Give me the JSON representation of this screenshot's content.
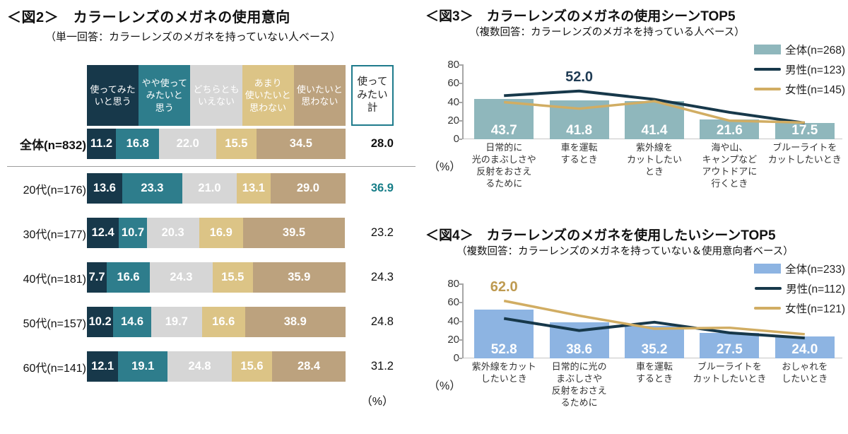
{
  "fig2": {
    "title": "＜図2＞　カラーレンズのメガネの使用意向",
    "subtitle": "（単一回答：カラーレンズのメガネを持っていない人ベース）",
    "unit_label": "（%）",
    "chart_data": {
      "type": "bar",
      "variant": "horizontal-stacked-100pct",
      "segments": [
        {
          "label": "使ってみた\nいと思う",
          "color": "#17384A",
          "text_color": "#ffffff"
        },
        {
          "label": "やや使って\nみたいと\n思う",
          "color": "#2E7D8C",
          "text_color": "#ffffff"
        },
        {
          "label": "どちらとも\nいえない",
          "color": "#D6D6D6",
          "text_color": "#ffffff"
        },
        {
          "label": "あまり\n使いたいと\n思わない",
          "color": "#DCC486",
          "text_color": "#ffffff"
        },
        {
          "label": "使いたいと\n思わない",
          "color": "#BCA27E",
          "text_color": "#ffffff"
        }
      ],
      "total_header": {
        "label": "使って\nみたい\n計",
        "border_color": "#1E7B8C"
      },
      "rows": [
        {
          "label": "全体(n=832)",
          "bold": true,
          "values": [
            11.2,
            16.8,
            22.0,
            15.5,
            34.5
          ],
          "total": "28.0",
          "total_bold": true,
          "total_color": "#111111",
          "separator_after": true
        },
        {
          "label": "20代(n=176)",
          "bold": false,
          "values": [
            13.6,
            23.3,
            21.0,
            13.1,
            29.0
          ],
          "total": "36.9",
          "total_bold": true,
          "total_color": "#177E88",
          "separator_after": false
        },
        {
          "label": "30代(n=177)",
          "bold": false,
          "values": [
            12.4,
            10.7,
            20.3,
            16.9,
            39.5
          ],
          "total": "23.2",
          "total_bold": false,
          "total_color": "#111111",
          "separator_after": false
        },
        {
          "label": "40代(n=181)",
          "bold": false,
          "values": [
            7.7,
            16.6,
            24.3,
            15.5,
            35.9
          ],
          "total": "24.3",
          "total_bold": false,
          "total_color": "#111111",
          "separator_after": false
        },
        {
          "label": "50代(n=157)",
          "bold": false,
          "values": [
            10.2,
            14.6,
            19.7,
            16.6,
            38.9
          ],
          "total": "24.8",
          "total_bold": false,
          "total_color": "#111111",
          "separator_after": false
        },
        {
          "label": "60代(n=141)",
          "bold": false,
          "values": [
            12.1,
            19.1,
            24.8,
            15.6,
            28.4
          ],
          "total": "31.2",
          "total_bold": false,
          "total_color": "#111111",
          "separator_after": false
        }
      ]
    }
  },
  "fig3": {
    "title": "＜図3＞　カラーレンズのメガネの使用シーンTOP5",
    "subtitle": "（複数回答：カラーレンズのメガネを持っている人ベース）",
    "unit_label": "（%）",
    "chart_data": {
      "type": "bar",
      "variant": "vertical-bars-with-lines",
      "ylim": [
        0,
        80
      ],
      "yticks": [
        0,
        20,
        40,
        60,
        80
      ],
      "categories": [
        "日常的に\n光のまぶしさや\n反射をおさえ\nるために",
        "車を運転\nするとき",
        "紫外線を\nカットしたい\nとき",
        "海や山、\nキャンプなど\nアウトドアに\n行くとき",
        "ブルーライトを\nカットしたいとき"
      ],
      "series": [
        {
          "name": "全体(n=268)",
          "type": "bar",
          "color": "#8FB7BC",
          "values": [
            43.7,
            41.8,
            41.4,
            21.6,
            17.5
          ],
          "labeled": true
        },
        {
          "name": "男性(n=123)",
          "type": "line",
          "color": "#17384A",
          "values": [
            47.0,
            52.0,
            43.0,
            29.0,
            17.5
          ],
          "estimated": true
        },
        {
          "name": "女性(n=145)",
          "type": "line",
          "color": "#D1AD63",
          "values": [
            40.0,
            33.0,
            41.0,
            20.0,
            18.0
          ],
          "estimated": true
        }
      ],
      "annotation": {
        "text": "52.0",
        "value": 52.0,
        "category_index": 1,
        "color": "#1F3B54"
      },
      "legend_position": "top-right"
    }
  },
  "fig4": {
    "title": "＜図4＞　カラーレンズのメガネを使用したいシーンTOP5",
    "subtitle": "（複数回答：カラーレンズのメガネを持っていない＆使用意向者ベース）",
    "unit_label": "（%）",
    "chart_data": {
      "type": "bar",
      "variant": "vertical-bars-with-lines",
      "ylim": [
        0,
        80
      ],
      "yticks": [
        0,
        20,
        40,
        60,
        80
      ],
      "categories": [
        "紫外線をカット\nしたいとき",
        "日常的に光の\nまぶしさや\n反射をおさえ\nるために",
        "車を運転\nするとき",
        "ブルーライトを\nカットしたいとき",
        "おしゃれを\nしたいとき"
      ],
      "series": [
        {
          "name": "全体(n=233)",
          "type": "bar",
          "color": "#8DB4E2",
          "values": [
            52.8,
            38.6,
            35.2,
            27.5,
            24.0
          ],
          "labeled": true
        },
        {
          "name": "男性(n=112)",
          "type": "line",
          "color": "#17384A",
          "values": [
            43.0,
            30.0,
            39.0,
            27.5,
            22.0
          ],
          "estimated": true
        },
        {
          "name": "女性(n=121)",
          "type": "line",
          "color": "#D1AD63",
          "values": [
            62.0,
            46.0,
            32.0,
            33.0,
            26.0
          ],
          "estimated": true
        }
      ],
      "annotation": {
        "text": "62.0",
        "value": 62.0,
        "category_index": 0,
        "color": "#BE9A50"
      },
      "legend_position": "top-right"
    }
  }
}
